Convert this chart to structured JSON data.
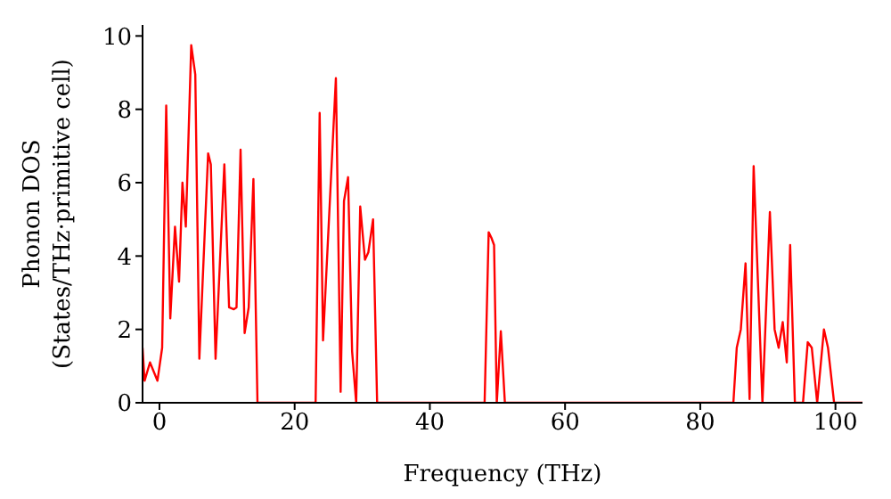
{
  "chart_data": {
    "type": "line",
    "xlabel": "Frequency (THz)",
    "ylabel": "Phonon DOS\n(States/THz·primitive cell)",
    "x": [
      -2.5,
      -2.2,
      -1.4,
      -0.3,
      0.4,
      1.0,
      1.6,
      2.3,
      2.9,
      3.4,
      3.9,
      4.7,
      5.3,
      5.9,
      7.2,
      7.6,
      8.3,
      9.6,
      10.3,
      11.0,
      11.4,
      12.0,
      12.6,
      13.2,
      13.9,
      14.5,
      23.1,
      23.7,
      24.2,
      26.1,
      26.8,
      27.3,
      27.9,
      28.5,
      29.1,
      29.7,
      30.4,
      30.9,
      31.6,
      32.2,
      48.1,
      48.7,
      49.1,
      49.5,
      49.9,
      50.5,
      51.1,
      84.9,
      85.4,
      86.0,
      86.7,
      87.3,
      87.9,
      89.2,
      90.3,
      91.0,
      91.6,
      92.2,
      92.8,
      93.3,
      94.0,
      95.2,
      95.9,
      96.5,
      97.3,
      98.3,
      98.9,
      99.8,
      104
    ],
    "series": [
      {
        "color": "#ff0000",
        "values": [
          1.5,
          0.6,
          1.1,
          0.6,
          1.5,
          8.1,
          2.3,
          4.8,
          3.3,
          6.0,
          4.8,
          9.75,
          8.95,
          1.2,
          6.8,
          6.5,
          1.2,
          6.5,
          2.6,
          2.55,
          2.6,
          6.9,
          1.9,
          2.6,
          6.1,
          0,
          0,
          7.9,
          1.7,
          8.85,
          0.3,
          5.5,
          6.15,
          1.4,
          0,
          5.35,
          3.9,
          4.1,
          5.0,
          0,
          0,
          4.65,
          4.5,
          4.3,
          0,
          1.95,
          0,
          0,
          1.5,
          2.0,
          3.8,
          0.1,
          6.45,
          0,
          5.2,
          2.0,
          1.5,
          2.2,
          1.1,
          4.3,
          0,
          0,
          1.65,
          1.5,
          0,
          2.0,
          1.5,
          0,
          0
        ]
      }
    ],
    "xlim": [
      -2.5,
      104
    ],
    "xticks": [
      0,
      20,
      40,
      60,
      80,
      100
    ],
    "ylim": [
      0,
      10.3
    ],
    "yticks": [
      0,
      2,
      4,
      6,
      8,
      10
    ],
    "grid": false,
    "legend": false,
    "marker": "none",
    "line_style": "solid"
  }
}
